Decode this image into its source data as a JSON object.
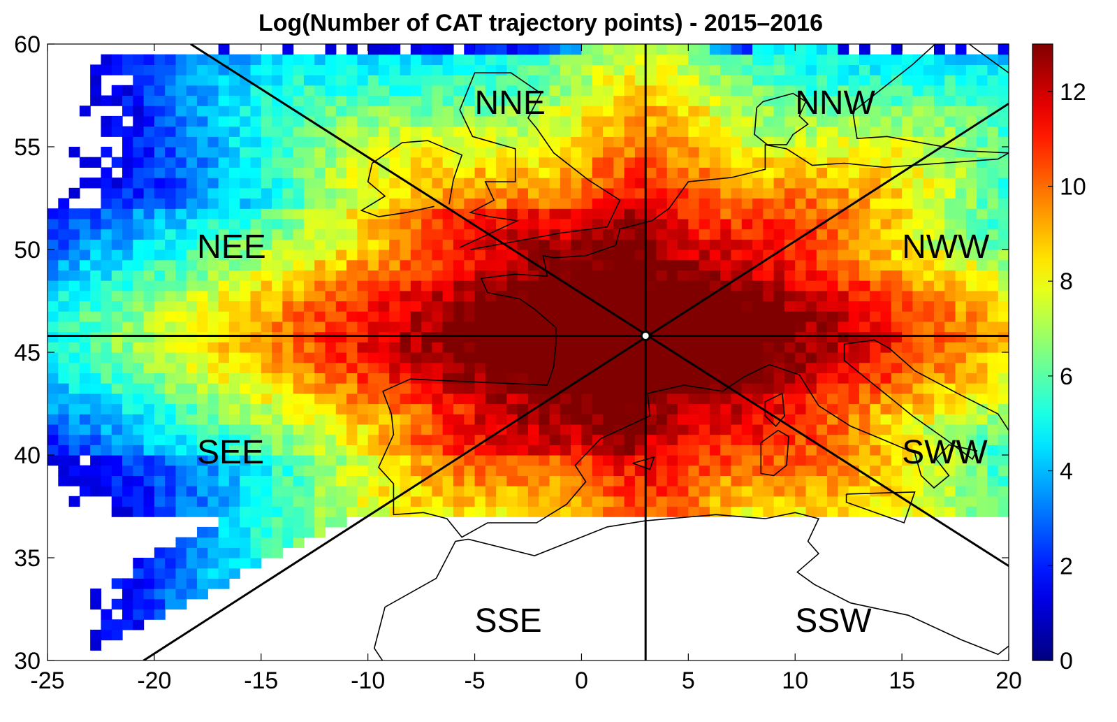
{
  "title": "Log(Number of CAT trajectory points) - 2015–2016",
  "chart_data": {
    "type": "heatmap",
    "title": "Log(Number of CAT trajectory points) - 2015–2016",
    "xlim": [
      -25,
      20
    ],
    "ylim": [
      30,
      60
    ],
    "x_ticks": [
      "-25",
      "-20",
      "-15",
      "-10",
      "-5",
      "0",
      "5",
      "10",
      "15",
      "20"
    ],
    "y_ticks": [
      "30",
      "35",
      "40",
      "45",
      "50",
      "55",
      "60"
    ],
    "colorbar": {
      "min": 0,
      "max": 13,
      "ticks": [
        "0",
        "2",
        "4",
        "6",
        "8",
        "10",
        "12"
      ],
      "colormap": "jet"
    },
    "center": {
      "lon": 3,
      "lat": 45.8
    },
    "peak_value": 12.5,
    "grid_resolution_deg": 0.5,
    "sector_lines": [
      {
        "from": [
          -18.3,
          60
        ],
        "to": [
          20,
          34.6
        ]
      },
      {
        "from": [
          -20.5,
          30
        ],
        "to": [
          20,
          57.1
        ]
      },
      {
        "from": [
          3,
          30
        ],
        "to": [
          3,
          60
        ]
      },
      {
        "from": [
          -25,
          45.8
        ],
        "to": [
          20,
          45.8
        ]
      }
    ],
    "sectors": [
      {
        "label": "NNE",
        "lon": -5,
        "lat": 56.6
      },
      {
        "label": "NNW",
        "lon": 10,
        "lat": 56.6
      },
      {
        "label": "NEE",
        "lon": -18,
        "lat": 49.6
      },
      {
        "label": "NWW",
        "lon": 15,
        "lat": 49.6
      },
      {
        "label": "SEE",
        "lon": -18,
        "lat": 39.6
      },
      {
        "label": "SWW",
        "lon": 15,
        "lat": 39.6
      },
      {
        "label": "SSE",
        "lon": -5,
        "lat": 31.4
      },
      {
        "label": "SSW",
        "lon": 10,
        "lat": 31.4
      }
    ],
    "coastlines": [
      {
        "name": "british-isles",
        "points": [
          [
            -5.2,
            50
          ],
          [
            -3.6,
            50.3
          ],
          [
            -1,
            50.8
          ],
          [
            1.2,
            51.1
          ],
          [
            1.8,
            52.4
          ],
          [
            0.3,
            53.4
          ],
          [
            -1.3,
            54.7
          ],
          [
            -2.1,
            55.9
          ],
          [
            -2.5,
            56.4
          ],
          [
            -1.9,
            57.6
          ],
          [
            -3.3,
            58.6
          ],
          [
            -5,
            58.6
          ],
          [
            -5.7,
            56.8
          ],
          [
            -5.1,
            55.5
          ],
          [
            -3.1,
            54.9
          ],
          [
            -3.1,
            53.3
          ],
          [
            -4.5,
            53.3
          ],
          [
            -4.1,
            52.4
          ],
          [
            -5.2,
            51.8
          ],
          [
            -4.3,
            51.6
          ],
          [
            -3,
            51.4
          ],
          [
            -5.7,
            50.1
          ]
        ]
      },
      {
        "name": "ireland",
        "points": [
          [
            -6.2,
            52.2
          ],
          [
            -6,
            53.4
          ],
          [
            -5.6,
            54.6
          ],
          [
            -7.2,
            55.3
          ],
          [
            -8.4,
            55.2
          ],
          [
            -9.8,
            54.2
          ],
          [
            -10,
            53.3
          ],
          [
            -9.2,
            52.6
          ],
          [
            -10.3,
            51.9
          ],
          [
            -9.5,
            51.6
          ],
          [
            -8.2,
            51.8
          ],
          [
            -6.9,
            52.1
          ]
        ]
      },
      {
        "name": "scandinavia-south",
        "points": [
          [
            8.2,
            56.9
          ],
          [
            8.5,
            57.2
          ],
          [
            9.9,
            57.6
          ],
          [
            10.5,
            57.2
          ],
          [
            10.2,
            56.5
          ],
          [
            10.6,
            56.1
          ],
          [
            9.9,
            55.6
          ],
          [
            9.6,
            55.1
          ],
          [
            8.7,
            55.1
          ],
          [
            8.1,
            55.6
          ],
          [
            8.2,
            56.9
          ]
        ]
      },
      {
        "name": "continent",
        "points": [
          [
            20,
            58.6
          ],
          [
            18.4,
            59.8
          ],
          [
            17.3,
            60.7
          ],
          [
            15.5,
            59
          ],
          [
            12.7,
            56.7
          ],
          [
            12.9,
            55.4
          ],
          [
            14.3,
            55.5
          ],
          [
            18,
            54.8
          ],
          [
            20,
            54.7
          ],
          [
            19.5,
            54.4
          ],
          [
            14.2,
            54
          ],
          [
            12.3,
            54.2
          ],
          [
            10.8,
            54.1
          ],
          [
            9.6,
            54.9
          ],
          [
            8.6,
            55.1
          ],
          [
            8.6,
            53.9
          ],
          [
            7,
            53.5
          ],
          [
            5,
            53.3
          ],
          [
            4.1,
            52
          ],
          [
            3.3,
            51.4
          ],
          [
            1.8,
            51
          ],
          [
            1.6,
            50.2
          ],
          [
            0.2,
            49.7
          ],
          [
            -1.3,
            49.6
          ],
          [
            -1.8,
            49.7
          ],
          [
            -1.6,
            48.7
          ],
          [
            -3.1,
            48.8
          ],
          [
            -4.7,
            48.6
          ],
          [
            -4.4,
            47.9
          ],
          [
            -2.9,
            47.6
          ],
          [
            -2.2,
            47.1
          ],
          [
            -1.2,
            46.2
          ],
          [
            -1.2,
            45.4
          ],
          [
            -1.3,
            44.3
          ],
          [
            -1.6,
            43.4
          ],
          [
            -3.8,
            43.5
          ],
          [
            -6,
            43.6
          ],
          [
            -8,
            43.7
          ],
          [
            -9.3,
            43.1
          ],
          [
            -8.9,
            42
          ],
          [
            -8.8,
            41
          ],
          [
            -9.5,
            39.4
          ],
          [
            -8.8,
            38.6
          ],
          [
            -8.8,
            37.1
          ],
          [
            -7.4,
            37.2
          ],
          [
            -6.3,
            36.9
          ],
          [
            -5.6,
            36
          ],
          [
            -4.4,
            36.7
          ],
          [
            -2.1,
            36.7
          ],
          [
            -0.7,
            37.6
          ],
          [
            0.2,
            38.7
          ],
          [
            -0.3,
            39.5
          ],
          [
            0.9,
            40.8
          ],
          [
            3.2,
            41.9
          ],
          [
            3.1,
            43
          ],
          [
            4.8,
            43.4
          ],
          [
            6.6,
            43.1
          ],
          [
            7.6,
            43.8
          ],
          [
            8.8,
            44.4
          ],
          [
            10.2,
            43.9
          ],
          [
            11.1,
            42.4
          ],
          [
            12.6,
            41.4
          ],
          [
            14,
            40.8
          ],
          [
            15.6,
            40.1
          ],
          [
            15.9,
            39
          ],
          [
            16.5,
            38.4
          ],
          [
            17.2,
            39
          ],
          [
            16.6,
            39.8
          ],
          [
            17.2,
            40.5
          ],
          [
            18.5,
            40.2
          ],
          [
            18.3,
            39.8
          ],
          [
            17,
            40.8
          ],
          [
            15.5,
            41.9
          ],
          [
            13.6,
            43.5
          ],
          [
            12.3,
            44.6
          ],
          [
            12.3,
            45.4
          ],
          [
            13.7,
            45.6
          ],
          [
            14.4,
            45.2
          ],
          [
            15.6,
            44.1
          ],
          [
            17.6,
            43
          ],
          [
            19.5,
            42
          ],
          [
            20,
            41.2
          ]
        ]
      },
      {
        "name": "corsica",
        "points": [
          [
            9.4,
            43
          ],
          [
            9.5,
            41.9
          ],
          [
            9.1,
            41.4
          ],
          [
            8.6,
            41.9
          ],
          [
            8.6,
            42.6
          ],
          [
            9.4,
            43
          ]
        ]
      },
      {
        "name": "sardinia",
        "points": [
          [
            9.2,
            41.2
          ],
          [
            9.7,
            40.9
          ],
          [
            9.6,
            39.5
          ],
          [
            9,
            39
          ],
          [
            8.4,
            39.1
          ],
          [
            8.4,
            40.6
          ],
          [
            9.2,
            41.2
          ]
        ]
      },
      {
        "name": "sicily",
        "points": [
          [
            12.4,
            38.1
          ],
          [
            15.6,
            38.2
          ],
          [
            15.1,
            36.7
          ],
          [
            12.4,
            37.7
          ],
          [
            12.4,
            38.1
          ]
        ]
      },
      {
        "name": "mallorca",
        "points": [
          [
            2.4,
            39.6
          ],
          [
            3.4,
            39.9
          ],
          [
            3.2,
            39.3
          ],
          [
            2.4,
            39.6
          ]
        ]
      },
      {
        "name": "north-africa",
        "points": [
          [
            -9,
            29.5
          ],
          [
            -9.7,
            30.6
          ],
          [
            -9.2,
            32.6
          ],
          [
            -6.8,
            34
          ],
          [
            -5.9,
            35.8
          ],
          [
            -5.3,
            35.9
          ],
          [
            -2.2,
            35.1
          ],
          [
            1.2,
            36.5
          ],
          [
            3,
            36.8
          ],
          [
            6.3,
            37.1
          ],
          [
            8.6,
            36.9
          ],
          [
            10,
            37.2
          ],
          [
            11.1,
            36.9
          ],
          [
            10.6,
            35.8
          ],
          [
            11.1,
            35.2
          ],
          [
            10.1,
            34.3
          ],
          [
            10.9,
            33.7
          ],
          [
            12.6,
            32.8
          ],
          [
            15.3,
            32.2
          ],
          [
            17.8,
            31
          ],
          [
            19.5,
            30.3
          ],
          [
            20,
            30.7
          ]
        ]
      }
    ]
  }
}
